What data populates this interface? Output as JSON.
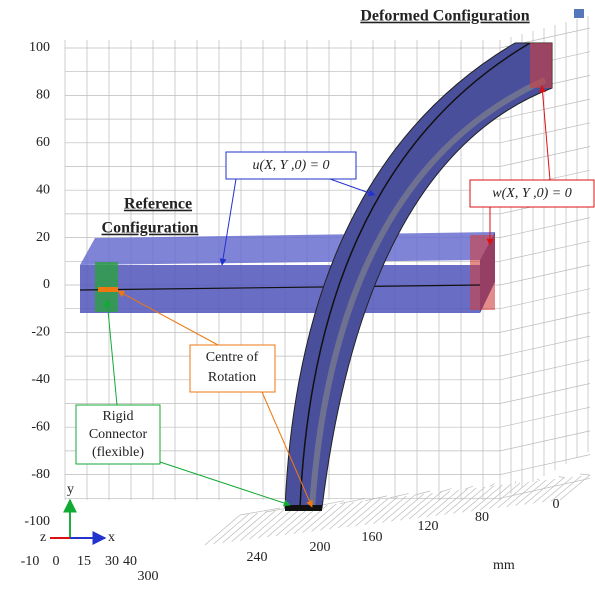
{
  "figure": {
    "title": "Deformed Configuration",
    "reference_label": [
      "Reference",
      "Configuration"
    ],
    "annotations": {
      "u_condition": "u(X, Y ,0) = 0",
      "w_condition": "w(X, Y ,0) = 0",
      "centre": [
        "Centre of",
        "Rotation"
      ],
      "rigid": [
        "Rigid",
        "Connector",
        "(flexible)"
      ]
    },
    "vertical_axis_labels": [
      "100",
      "80",
      "60",
      "40",
      "20",
      "0",
      "-20",
      "-40",
      "-60",
      "-80",
      "-100"
    ],
    "front_axis_labels": [
      "-10",
      "0",
      "15",
      "30",
      "40",
      "300"
    ],
    "depth_axis_labels": [
      "240",
      "200",
      "160",
      "120",
      "80",
      "0"
    ],
    "unit": "mm",
    "triad": {
      "y": "y",
      "z": "z",
      "x": "x"
    }
  }
}
